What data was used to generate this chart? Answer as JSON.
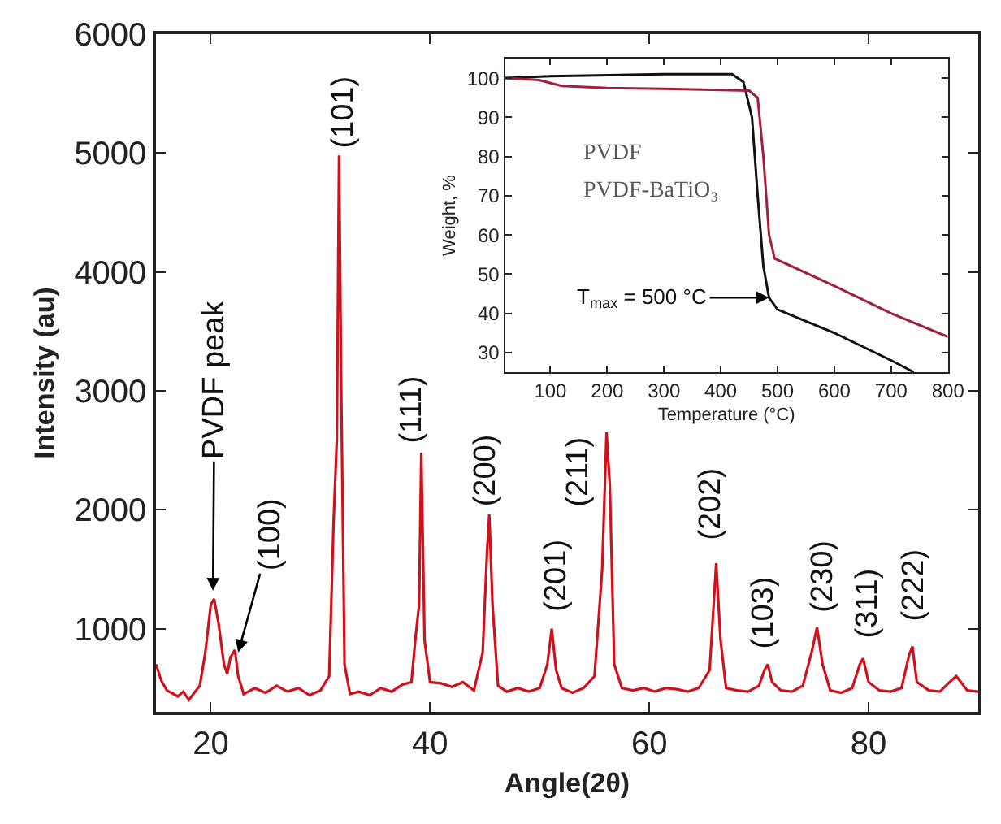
{
  "chart_data": [
    {
      "type": "line",
      "xlabel": "Angle(2θ)",
      "ylabel": "Intensity (au)",
      "xlim": [
        15,
        90
      ],
      "ylim": [
        300,
        6000
      ],
      "xticks": [
        20,
        40,
        60,
        80
      ],
      "yticks": [
        1000,
        2000,
        3000,
        4000,
        5000,
        6000
      ],
      "marker": "none",
      "line_style": "solid",
      "x": [
        15,
        15.5,
        16,
        17,
        17.5,
        18,
        18.5,
        19,
        19.5,
        20,
        20.3,
        20.7,
        21.2,
        21.5,
        21.8,
        22.2,
        22.5,
        23,
        24,
        25,
        26,
        27,
        28,
        29,
        30,
        30.8,
        31.2,
        31.5,
        31.7,
        31.9,
        32.2,
        32.7,
        33.5,
        34.5,
        35.5,
        36.5,
        37.5,
        38.3,
        38.7,
        39,
        39.2,
        39.5,
        40,
        41,
        42,
        43,
        44,
        44.8,
        45.2,
        45.4,
        45.7,
        46.2,
        47,
        48,
        49,
        50,
        50.7,
        51.1,
        51.5,
        52,
        53,
        54,
        55,
        55.7,
        56.1,
        56.4,
        56.8,
        57.5,
        58.5,
        59.5,
        60.5,
        61.5,
        62.5,
        63.5,
        64.5,
        65.5,
        66.1,
        66.5,
        67,
        68,
        69,
        70,
        70.5,
        70.8,
        71.2,
        72,
        73,
        74,
        74.8,
        75.3,
        75.8,
        76.5,
        77.5,
        78.5,
        79.2,
        79.5,
        80,
        81,
        82,
        83,
        83.7,
        84,
        84.4,
        85.5,
        86.5,
        87.5,
        88,
        89,
        90
      ],
      "series": [
        {
          "color": "#d0101a",
          "values": [
            700,
            560,
            480,
            430,
            470,
            400,
            460,
            520,
            800,
            1200,
            1250,
            1050,
            700,
            620,
            760,
            820,
            600,
            450,
            500,
            460,
            520,
            470,
            500,
            440,
            480,
            600,
            1900,
            2600,
            4980,
            3000,
            700,
            450,
            470,
            440,
            500,
            470,
            530,
            550,
            950,
            1200,
            2480,
            900,
            550,
            540,
            510,
            550,
            480,
            800,
            1650,
            1960,
            1200,
            520,
            470,
            500,
            470,
            500,
            700,
            1000,
            650,
            500,
            460,
            500,
            600,
            1500,
            2650,
            2200,
            700,
            500,
            480,
            500,
            470,
            500,
            490,
            470,
            500,
            650,
            1550,
            900,
            500,
            480,
            470,
            520,
            650,
            700,
            550,
            480,
            470,
            520,
            800,
            1010,
            700,
            480,
            460,
            500,
            700,
            750,
            550,
            480,
            470,
            500,
            780,
            850,
            550,
            480,
            470,
            560,
            600,
            480,
            470
          ]
        }
      ],
      "annotations": [
        {
          "text": "PVDF peak",
          "x": 20.2,
          "y": 1320
        },
        {
          "text": "(100)",
          "x": 22.5,
          "y": 800
        },
        {
          "text": "(101)",
          "x": 31.7,
          "y": 4980
        },
        {
          "text": "(111)",
          "x": 39.2,
          "y": 2480
        },
        {
          "text": "(200)",
          "x": 45.4,
          "y": 1960
        },
        {
          "text": "(201)",
          "x": 51.1,
          "y": 1000
        },
        {
          "text": "(211)",
          "x": 56.1,
          "y": 2650
        },
        {
          "text": "(202)",
          "x": 66.1,
          "y": 1550
        },
        {
          "text": "(103)",
          "x": 70.8,
          "y": 700
        },
        {
          "text": "(230)",
          "x": 75.3,
          "y": 1010
        },
        {
          "text": "(311)",
          "x": 79.5,
          "y": 750
        },
        {
          "text": "(222)",
          "x": 84,
          "y": 850
        }
      ]
    },
    {
      "type": "line",
      "xlabel": "Temperature (°C)",
      "ylabel": "Weight, %",
      "xlim": [
        20,
        800
      ],
      "ylim": [
        25,
        105
      ],
      "xticks": [
        100,
        200,
        300,
        400,
        500,
        600,
        700,
        800
      ],
      "yticks": [
        30,
        40,
        50,
        60,
        70,
        80,
        90,
        100
      ],
      "marker": "none",
      "line_style": "solid",
      "series": [
        {
          "color": "#111111",
          "x": [
            20,
            100,
            300,
            420,
            440,
            455,
            465,
            475,
            485,
            500,
            600,
            700,
            740
          ],
          "values": [
            100,
            100.5,
            101,
            101,
            99,
            90,
            70,
            52,
            44,
            41,
            35,
            28,
            25
          ]
        },
        {
          "color": "#a0203a",
          "x": [
            20,
            80,
            120,
            200,
            300,
            450,
            465,
            475,
            485,
            495,
            600,
            700,
            800
          ],
          "values": [
            100,
            99.5,
            98,
            97.5,
            97.3,
            96.8,
            95,
            80,
            60,
            54,
            47,
            40,
            34
          ]
        }
      ],
      "annotations": [
        "PVDF",
        "PVDF-BaTiO₃",
        {
          "text": "T$_{max}$ = 500 °C",
          "x": 485,
          "y": 44
        }
      ]
    }
  ]
}
